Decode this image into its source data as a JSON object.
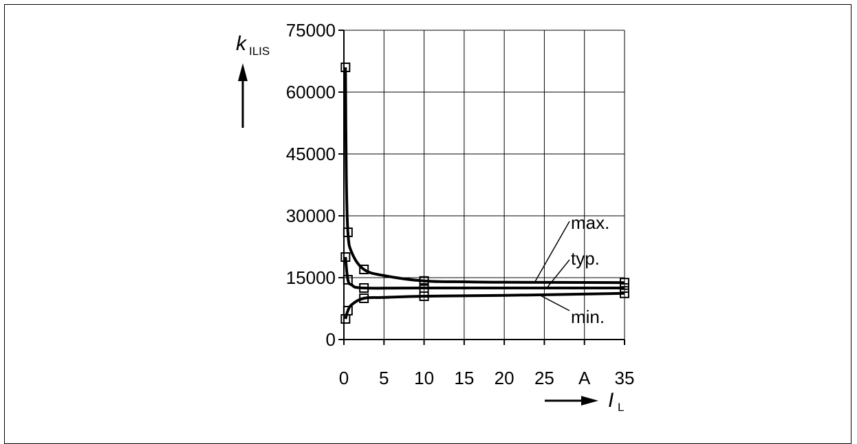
{
  "chart_data": {
    "type": "line",
    "title": "",
    "xlabel": {
      "symbol": "I",
      "subscript": "L"
    },
    "ylabel": {
      "symbol": "k",
      "subscript": "ILIS"
    },
    "x_unit_label": "A",
    "xlim": [
      0,
      35
    ],
    "ylim": [
      0,
      75000
    ],
    "x_ticks": [
      "0",
      "5",
      "10",
      "15",
      "20",
      "25",
      "A",
      "35"
    ],
    "x_tick_values": [
      0,
      5,
      10,
      15,
      20,
      25,
      30,
      35
    ],
    "y_ticks": [
      "0",
      "15000",
      "30000",
      "45000",
      "60000",
      "75000"
    ],
    "y_tick_values": [
      0,
      15000,
      30000,
      45000,
      60000,
      75000
    ],
    "grid": true,
    "legend": "none",
    "series": [
      {
        "name": "max.",
        "markers": [
          [
            0.2,
            66000
          ],
          [
            0.5,
            26000
          ],
          [
            2.5,
            17000
          ],
          [
            10,
            14200
          ],
          [
            35,
            13800
          ]
        ],
        "curve": [
          [
            0.2,
            66000
          ],
          [
            0.3,
            40000
          ],
          [
            0.5,
            26000
          ],
          [
            1,
            21000
          ],
          [
            2.5,
            17000
          ],
          [
            5,
            15500
          ],
          [
            10,
            14200
          ],
          [
            15,
            14000
          ],
          [
            20,
            13900
          ],
          [
            35,
            13800
          ]
        ]
      },
      {
        "name": "typ.",
        "markers": [
          [
            0.2,
            20000
          ],
          [
            0.5,
            14500
          ],
          [
            2.5,
            12500
          ],
          [
            10,
            12500
          ],
          [
            35,
            12500
          ]
        ],
        "curve": [
          [
            0.2,
            20000
          ],
          [
            0.5,
            14500
          ],
          [
            1,
            13200
          ],
          [
            2.5,
            12500
          ],
          [
            10,
            12500
          ],
          [
            35,
            12500
          ]
        ]
      },
      {
        "name": "min.",
        "markers": [
          [
            0.2,
            5000
          ],
          [
            0.5,
            7000
          ],
          [
            2.5,
            10000
          ],
          [
            10,
            10500
          ],
          [
            35,
            11200
          ]
        ],
        "curve": [
          [
            0.2,
            5000
          ],
          [
            0.5,
            7000
          ],
          [
            1,
            8500
          ],
          [
            2.5,
            10000
          ],
          [
            5,
            10200
          ],
          [
            10,
            10500
          ],
          [
            20,
            10700
          ],
          [
            35,
            11200
          ]
        ]
      }
    ],
    "label_lines": [
      {
        "text": "max.",
        "x": 23.8,
        "y": 13900
      },
      {
        "text": "typ.",
        "x": 25.3,
        "y": 12500
      },
      {
        "text": "min.",
        "x": 24.5,
        "y": 10700
      }
    ]
  }
}
